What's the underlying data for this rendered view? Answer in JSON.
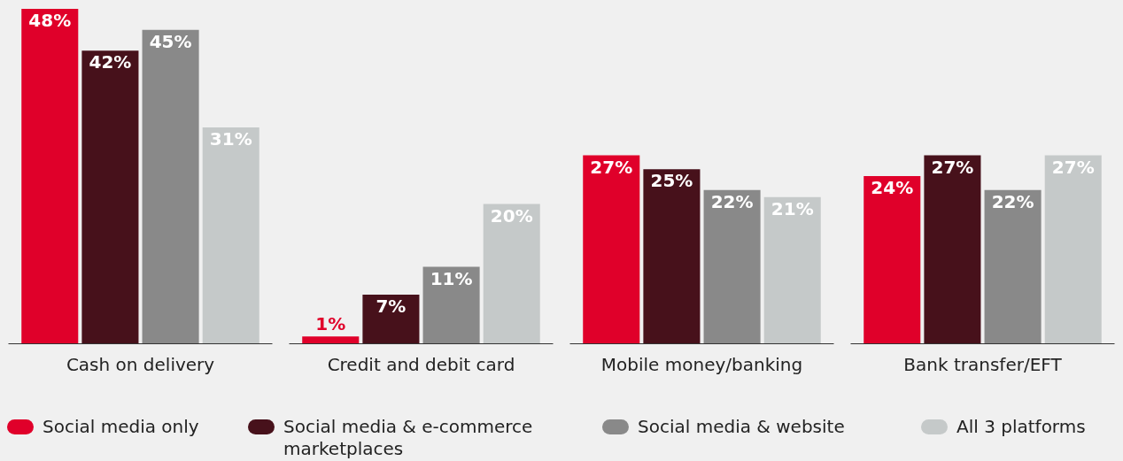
{
  "chart_data": {
    "type": "bar",
    "categories": [
      "Cash on delivery",
      "Credit and debit card",
      "Mobile money/banking",
      "Bank transfer/EFT"
    ],
    "series": [
      {
        "name": "Social media only",
        "color": "#e0002a",
        "values": [
          48,
          1,
          27,
          24
        ],
        "value_labels": [
          "48%",
          "1%",
          "27%",
          "24%"
        ]
      },
      {
        "name": "Social media & e-commerce marketplaces",
        "color": "#47111b",
        "values": [
          42,
          7,
          25,
          27
        ],
        "value_labels": [
          "42%",
          "7%",
          "25%",
          "27%"
        ]
      },
      {
        "name": "Social media & website",
        "color": "#898989",
        "values": [
          45,
          11,
          22,
          22
        ],
        "value_labels": [
          "45%",
          "11%",
          "22%",
          "22%"
        ]
      },
      {
        "name": "All 3 platforms",
        "color": "#c5c9c9",
        "values": [
          31,
          20,
          21,
          27
        ],
        "value_labels": [
          "31%",
          "20%",
          "21%",
          "27%"
        ]
      }
    ],
    "legend": "bottom"
  }
}
